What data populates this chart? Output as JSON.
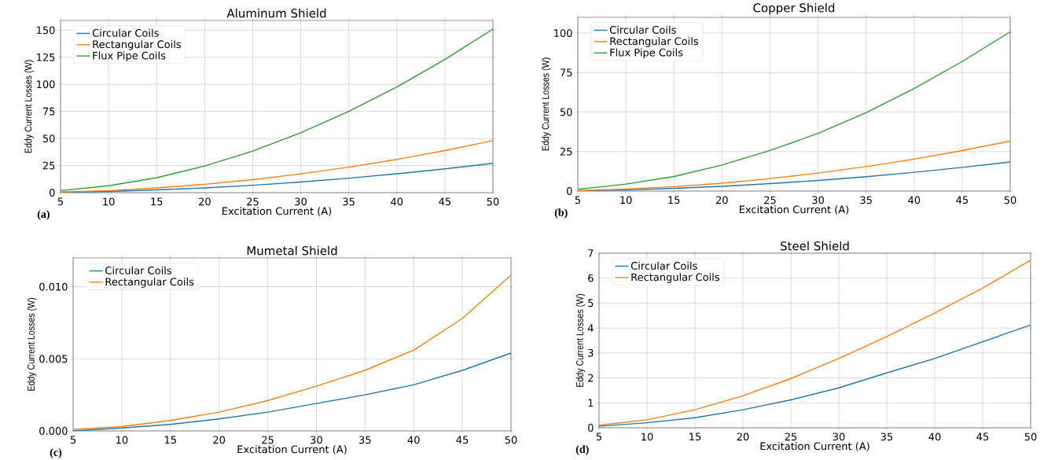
{
  "chart_data": [
    {
      "type": "line",
      "title": "Aluminum Shield",
      "xlabel": "Excitation Current (A)",
      "ylabel": "Eddy Current Losses (W)",
      "annotations": [
        "(a)"
      ],
      "x": [
        5,
        10,
        15,
        20,
        25,
        30,
        35,
        40,
        45,
        50
      ],
      "xlim": [
        5,
        50
      ],
      "xticks": [
        5,
        10,
        15,
        20,
        25,
        30,
        35,
        40,
        45,
        50
      ],
      "ylim": [
        0,
        159
      ],
      "yticks": [
        0,
        25,
        50,
        75,
        100,
        125,
        150
      ],
      "grid": true,
      "legend": "top left",
      "series": [
        {
          "name": "Circular Coils",
          "color": "#1f77b4",
          "values": [
            0.3,
            1.1,
            2.5,
            4.4,
            6.8,
            9.8,
            13.3,
            17.4,
            22,
            27
          ]
        },
        {
          "name": "Rectangular Coils",
          "color": "#ff7f0e",
          "values": [
            0.5,
            1.9,
            4.3,
            7.7,
            12,
            17.3,
            23.5,
            30.7,
            38.8,
            48
          ]
        },
        {
          "name": "Flux Pipe Coils",
          "color": "#2ca02c",
          "values": [
            1.9,
            6.3,
            13.8,
            24.6,
            38.4,
            55.2,
            75,
            97.5,
            123,
            151
          ]
        }
      ]
    },
    {
      "type": "line",
      "title": "Copper Shield",
      "xlabel": "Excitation Current (A)",
      "ylabel": "Eddy Current Losses (W)",
      "annotations": [
        "(b)"
      ],
      "x": [
        5,
        10,
        15,
        20,
        25,
        30,
        35,
        40,
        45,
        50
      ],
      "xlim": [
        5,
        50
      ],
      "xticks": [
        5,
        10,
        15,
        20,
        25,
        30,
        35,
        40,
        45,
        50
      ],
      "ylim": [
        0,
        110
      ],
      "yticks": [
        0,
        25,
        50,
        75,
        100
      ],
      "grid": true,
      "legend": "top left",
      "series": [
        {
          "name": "Circular Coils",
          "color": "#1f77b4",
          "values": [
            0.2,
            0.7,
            1.7,
            3,
            4.7,
            6.7,
            9.1,
            11.9,
            15,
            18.4
          ]
        },
        {
          "name": "Rectangular Coils",
          "color": "#ff7f0e",
          "values": [
            0.3,
            1.3,
            2.8,
            5,
            7.9,
            11.4,
            15.5,
            20.2,
            25.6,
            31.6
          ]
        },
        {
          "name": "Flux Pipe Coils",
          "color": "#2ca02c",
          "values": [
            1.1,
            4.4,
            9.2,
            16.5,
            25.7,
            36.5,
            49.6,
            64.9,
            82,
            100.8
          ]
        }
      ]
    },
    {
      "type": "line",
      "title": "Mumetal Shield",
      "xlabel": "Excitation Current (A)",
      "ylabel": "Eddy Current Losses (W)",
      "annotations": [
        "(c)"
      ],
      "x": [
        5,
        10,
        15,
        20,
        25,
        30,
        35,
        40,
        45,
        50
      ],
      "xlim": [
        5,
        50
      ],
      "xticks": [
        5,
        10,
        15,
        20,
        25,
        30,
        35,
        40,
        45,
        50
      ],
      "ylim": [
        0,
        0.012
      ],
      "yticks": [
        {
          "value": 0,
          "label": "0.000"
        },
        {
          "value": 0.005,
          "label": "0.005"
        },
        {
          "value": 0.01,
          "label": "0.010"
        }
      ],
      "grid": true,
      "legend": "top left",
      "series": [
        {
          "name": "Circular Coils",
          "color": "#1f77b4",
          "values": [
            0,
            0.0002,
            0.00045,
            0.00083,
            0.0013,
            0.0019,
            0.0025,
            0.0032,
            0.0042,
            0.0054
          ]
        },
        {
          "name": "Rectangular Coils",
          "color": "#ff7f0e",
          "values": [
            0.0001,
            0.0003,
            0.00072,
            0.0013,
            0.0021,
            0.0031,
            0.0042,
            0.0056,
            0.0078,
            0.0108
          ]
        }
      ]
    },
    {
      "type": "line",
      "title": "Steel Shield",
      "xlabel": "Excitation Current (A)",
      "ylabel": "Eddy Current Losses (W)",
      "annotations": [
        "(d)"
      ],
      "x": [
        5,
        10,
        15,
        20,
        25,
        30,
        35,
        40,
        45,
        50
      ],
      "xlim": [
        5,
        50
      ],
      "xticks": [
        5,
        10,
        15,
        20,
        25,
        30,
        35,
        40,
        45,
        50
      ],
      "ylim": [
        0,
        7
      ],
      "yticks": [
        0,
        1,
        2,
        3,
        4,
        5,
        6,
        7
      ],
      "grid": true,
      "legend": "top left",
      "series": [
        {
          "name": "Circular Coils",
          "color": "#1f77b4",
          "values": [
            0.06,
            0.2,
            0.4,
            0.72,
            1.12,
            1.6,
            2.2,
            2.78,
            3.45,
            4.12
          ]
        },
        {
          "name": "Rectangular Coils",
          "color": "#ff7f0e",
          "values": [
            0.1,
            0.32,
            0.72,
            1.28,
            1.97,
            2.78,
            3.65,
            4.6,
            5.6,
            6.72
          ]
        }
      ]
    }
  ]
}
